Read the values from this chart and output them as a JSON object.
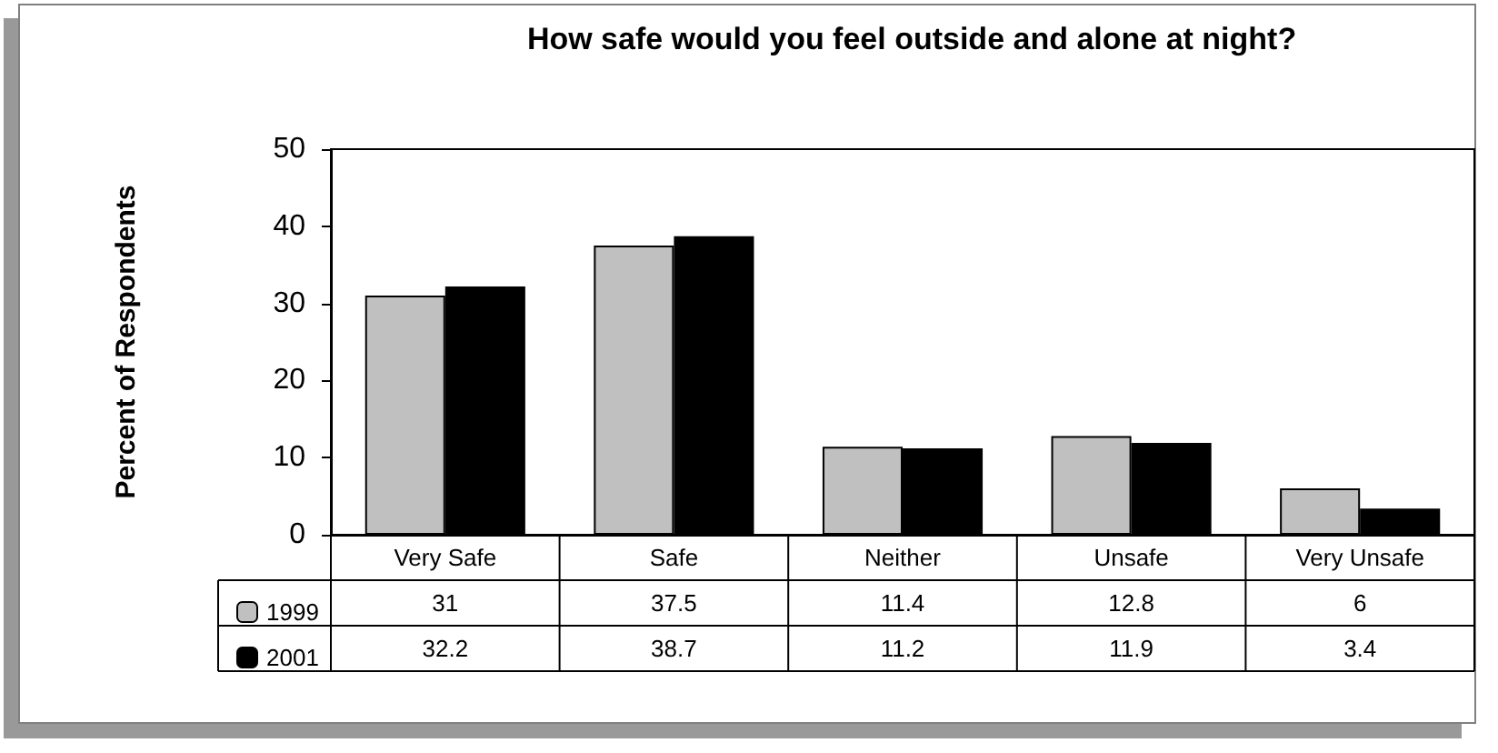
{
  "chart_data": {
    "type": "bar",
    "title": "How safe would you feel outside and alone at night?",
    "ylabel": "Percent of Respondents",
    "categories": [
      "Very Safe",
      "Safe",
      "Neither",
      "Unsafe",
      "Very Unsafe"
    ],
    "series": [
      {
        "name": "1999",
        "color": "#c0c0c0",
        "values": [
          31,
          37.5,
          11.4,
          12.8,
          6
        ]
      },
      {
        "name": "2001",
        "color": "#000000",
        "values": [
          32.2,
          38.7,
          11.2,
          11.9,
          3.4
        ]
      }
    ],
    "ylim": [
      0,
      50
    ],
    "yticks": [
      0,
      10,
      20,
      30,
      40,
      50
    ],
    "grid": false,
    "legend": "bottom left",
    "data_labels": true
  }
}
